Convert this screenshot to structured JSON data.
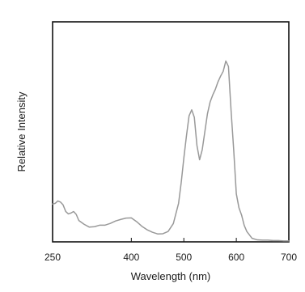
{
  "chart_data": {
    "type": "line",
    "xlabel": "Wavelength (nm)",
    "ylabel": "Relative Intensity",
    "xlim": [
      250,
      700
    ],
    "ylim": [
      0,
      1
    ],
    "x_ticks": [
      250,
      400,
      500,
      600,
      700
    ],
    "x_tick_labels": [
      "250",
      "400",
      "500",
      "600",
      "700"
    ],
    "y_ticks": [],
    "grid": false,
    "legend": "none",
    "series": [
      {
        "color": "#999999",
        "x": [
          250,
          255,
          260,
          265,
          270,
          275,
          280,
          285,
          290,
          295,
          300,
          310,
          320,
          330,
          340,
          350,
          360,
          370,
          380,
          390,
          400,
          410,
          420,
          430,
          440,
          450,
          460,
          470,
          480,
          490,
          495,
          500,
          505,
          510,
          515,
          520,
          525,
          530,
          535,
          540,
          545,
          550,
          555,
          560,
          565,
          570,
          575,
          580,
          585,
          590,
          595,
          600,
          605,
          610,
          615,
          620,
          630,
          640,
          650,
          660,
          670,
          680,
          690,
          700
        ],
        "y": [
          0.172,
          0.175,
          0.186,
          0.181,
          0.168,
          0.138,
          0.127,
          0.131,
          0.138,
          0.125,
          0.097,
          0.08,
          0.067,
          0.069,
          0.076,
          0.076,
          0.084,
          0.095,
          0.102,
          0.108,
          0.109,
          0.092,
          0.071,
          0.055,
          0.044,
          0.036,
          0.037,
          0.047,
          0.083,
          0.175,
          0.269,
          0.38,
          0.482,
          0.573,
          0.6,
          0.566,
          0.438,
          0.373,
          0.418,
          0.5,
          0.582,
          0.635,
          0.667,
          0.693,
          0.727,
          0.753,
          0.775,
          0.822,
          0.797,
          0.597,
          0.418,
          0.218,
          0.155,
          0.122,
          0.075,
          0.047,
          0.016,
          0.009,
          0.008,
          0.008,
          0.006,
          0.006,
          0.004,
          0.004
        ]
      }
    ]
  }
}
